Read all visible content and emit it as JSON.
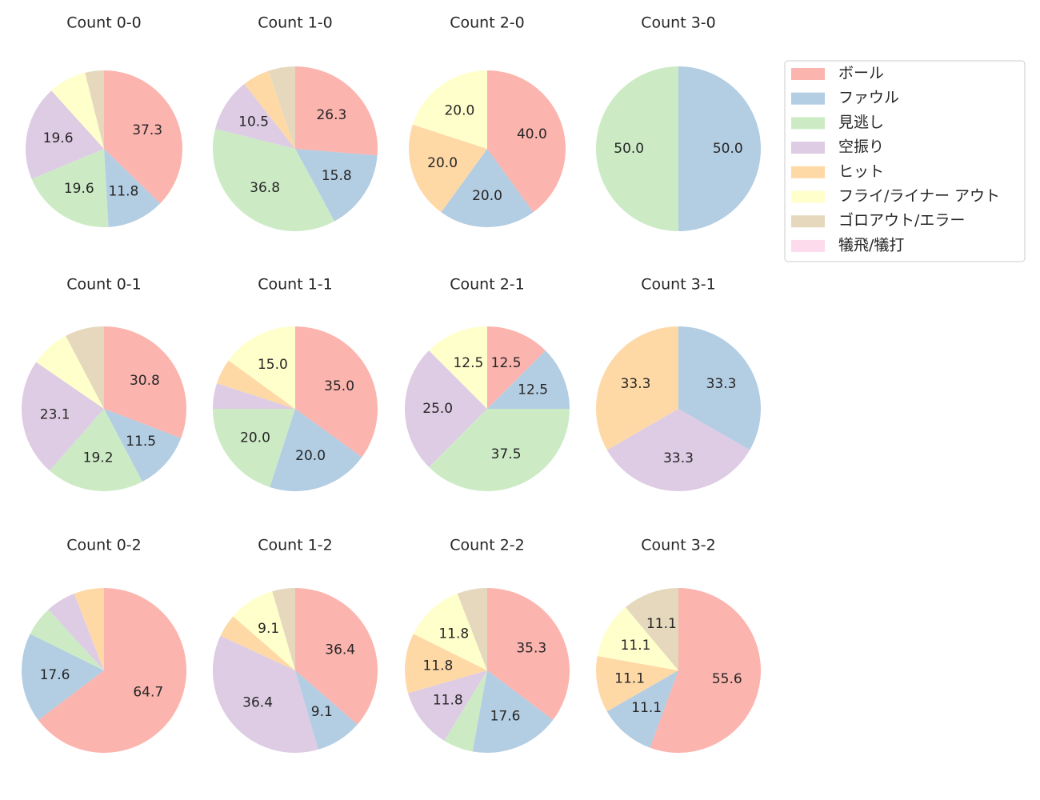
{
  "chart_data": {
    "type": "pie",
    "categories": [
      "ボール",
      "ファウル",
      "見逃し",
      "空振り",
      "ヒット",
      "フライ/ライナー アウト",
      "ゴロアウト/エラー",
      "犠飛/犠打"
    ],
    "colors": [
      "#fbb4ae",
      "#b3cde3",
      "#ccebc5",
      "#decbe4",
      "#fed9a6",
      "#ffffcc",
      "#e5d8bd",
      "#fddaec"
    ],
    "legend": {
      "location": "top-right"
    },
    "charts": [
      {
        "title": "Count 0-0",
        "values": [
          37.3,
          11.8,
          19.6,
          19.6,
          0,
          7.8,
          3.9,
          0
        ],
        "labels": [
          "37.3",
          "11.8",
          "19.6",
          "19.6",
          "",
          "",
          "",
          ""
        ]
      },
      {
        "title": "Count 1-0",
        "values": [
          26.3,
          15.8,
          36.8,
          10.5,
          5.3,
          0,
          5.3,
          0
        ],
        "labels": [
          "26.3",
          "15.8",
          "36.8",
          "10.5",
          "",
          "",
          "",
          ""
        ]
      },
      {
        "title": "Count 2-0",
        "values": [
          40.0,
          20.0,
          0,
          0,
          20.0,
          20.0,
          0,
          0
        ],
        "labels": [
          "40.0",
          "20.0",
          "",
          "",
          "20.0",
          "20.0",
          "",
          ""
        ]
      },
      {
        "title": "Count 3-0",
        "values": [
          0,
          50.0,
          50.0,
          0,
          0,
          0,
          0,
          0
        ],
        "labels": [
          "",
          "50.0",
          "50.0",
          "",
          "",
          "",
          "",
          ""
        ]
      },
      {
        "title": "Count 0-1",
        "values": [
          30.8,
          11.5,
          19.2,
          23.1,
          0,
          7.7,
          7.7,
          0
        ],
        "labels": [
          "30.8",
          "11.5",
          "19.2",
          "23.1",
          "",
          "",
          "",
          ""
        ]
      },
      {
        "title": "Count 1-1",
        "values": [
          35.0,
          20.0,
          20.0,
          5.0,
          5.0,
          15.0,
          0,
          0
        ],
        "labels": [
          "35.0",
          "20.0",
          "20.0",
          "",
          "",
          "15.0",
          "",
          ""
        ]
      },
      {
        "title": "Count 2-1",
        "values": [
          12.5,
          12.5,
          37.5,
          25.0,
          0,
          12.5,
          0,
          0
        ],
        "labels": [
          "12.5",
          "12.5",
          "37.5",
          "25.0",
          "",
          "12.5",
          "",
          ""
        ]
      },
      {
        "title": "Count 3-1",
        "values": [
          0,
          33.3,
          0,
          33.3,
          33.3,
          0,
          0,
          0
        ],
        "labels": [
          "",
          "33.3",
          "",
          "33.3",
          "33.3",
          "",
          "",
          ""
        ]
      },
      {
        "title": "Count 0-2",
        "values": [
          64.7,
          17.6,
          5.9,
          5.9,
          5.9,
          0,
          0,
          0
        ],
        "labels": [
          "64.7",
          "17.6",
          "",
          "",
          "",
          "",
          "",
          ""
        ]
      },
      {
        "title": "Count 1-2",
        "values": [
          36.4,
          9.1,
          0,
          36.4,
          4.5,
          9.1,
          4.5,
          0
        ],
        "labels": [
          "36.4",
          "9.1",
          "",
          "36.4",
          "",
          "9.1",
          "",
          ""
        ]
      },
      {
        "title": "Count 2-2",
        "values": [
          35.3,
          17.6,
          5.9,
          11.8,
          11.8,
          11.8,
          5.9,
          0
        ],
        "labels": [
          "35.3",
          "17.6",
          "",
          "11.8",
          "11.8",
          "11.8",
          "",
          ""
        ]
      },
      {
        "title": "Count 3-2",
        "values": [
          55.6,
          11.1,
          0,
          0,
          11.1,
          11.1,
          11.1,
          0
        ],
        "labels": [
          "55.6",
          "11.1",
          "",
          "",
          "11.1",
          "11.1",
          "11.1",
          ""
        ]
      }
    ]
  }
}
